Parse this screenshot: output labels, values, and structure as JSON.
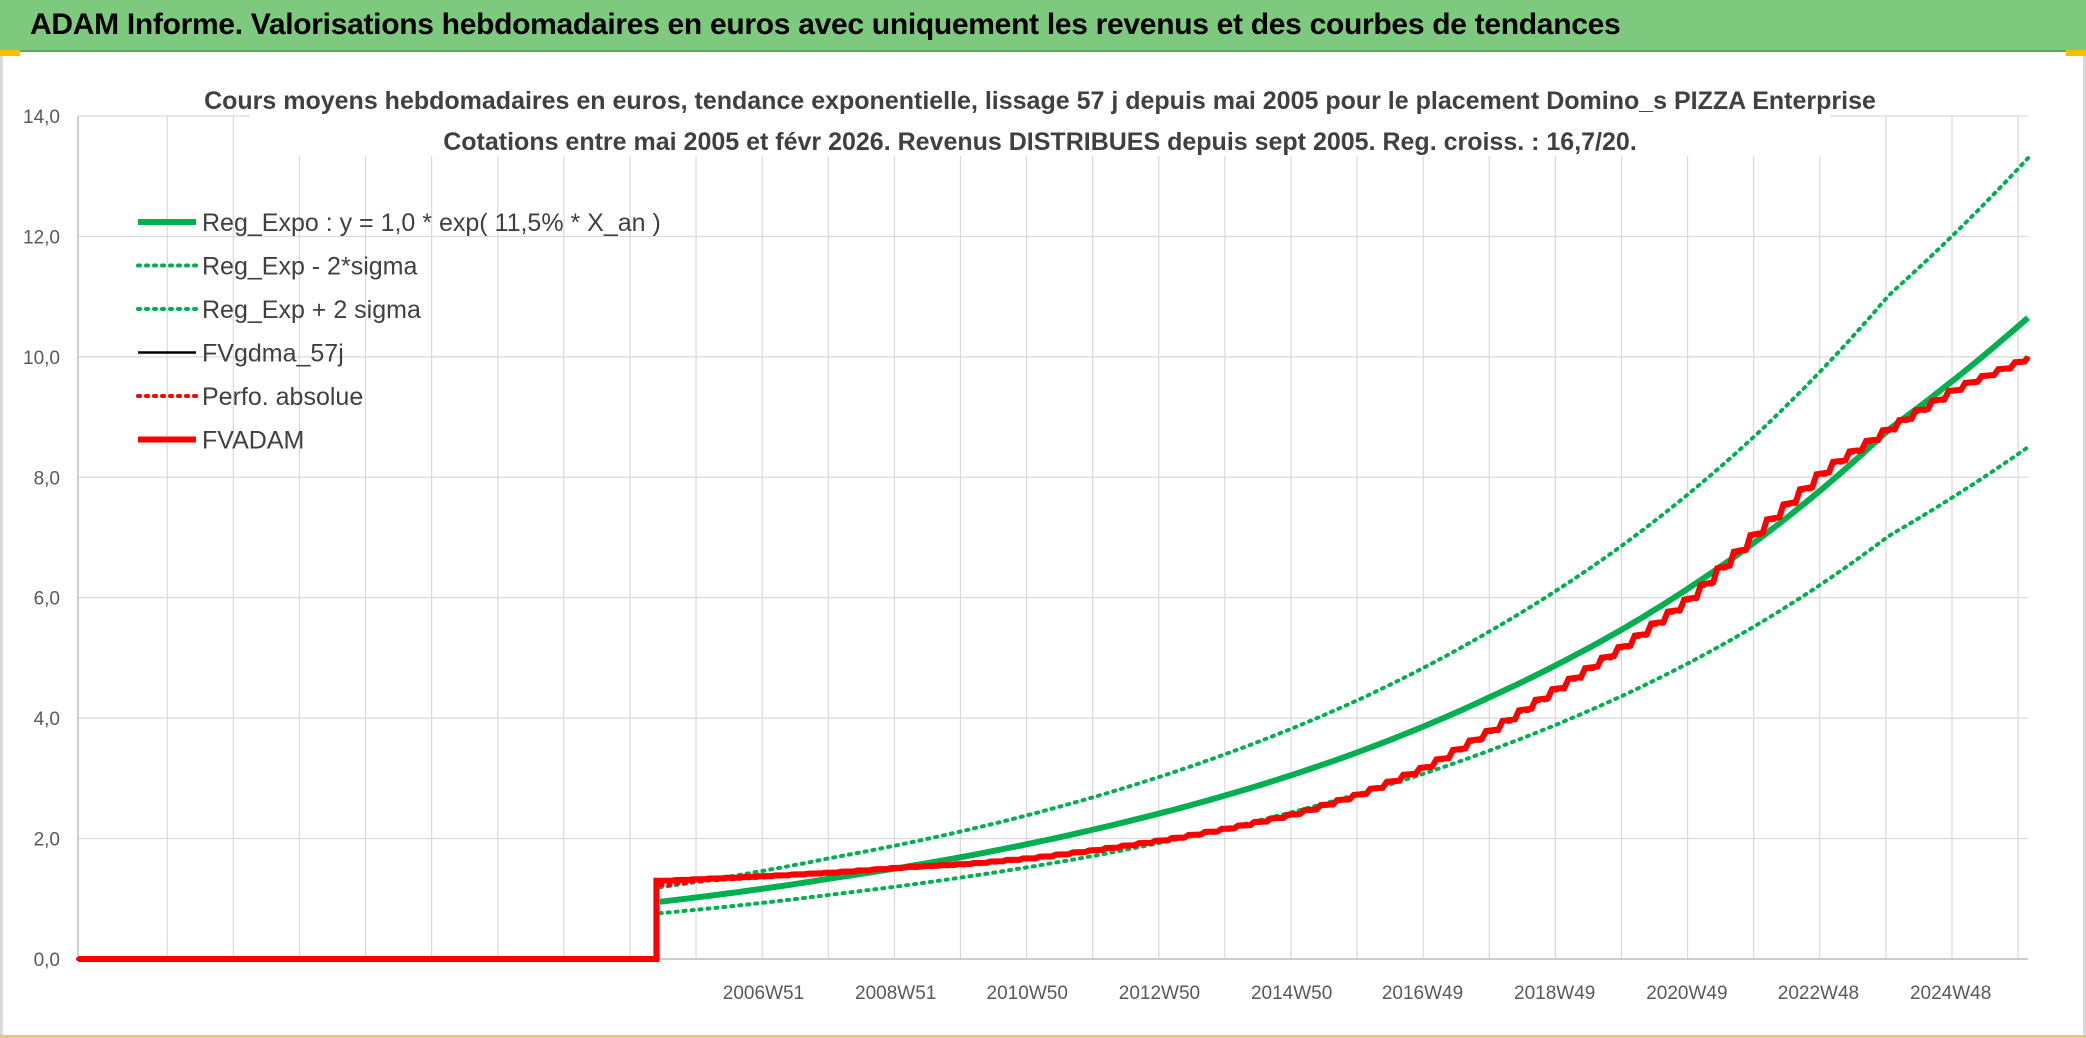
{
  "page": {
    "banner_title": "ADAM Informe. Valorisations hebdomadaires en euros avec uniquement les revenus et des courbes de tendances"
  },
  "colors": {
    "banner_bg": "#7dc97d",
    "green": "#00b050",
    "red": "#ff0000",
    "black": "#000000",
    "grid": "#d9d9d9"
  },
  "chart_data": {
    "type": "line",
    "title_line1": "Cours moyens hebdomadaires en euros, tendance exponentielle, lissage 57 j depuis mai 2005 pour le placement Domino_s PIZZA Enterprise",
    "title_line2": "Cotations entre mai 2005 et févr 2026. Revenus DISTRIBUES depuis sept 2005. Reg. croiss. : 16,7/20.",
    "xlabel": "",
    "ylabel": "",
    "ylim": [
      0,
      14
    ],
    "yticks": [
      "0,0",
      "2,0",
      "4,0",
      "6,0",
      "8,0",
      "10,0",
      "12,0",
      "14,0"
    ],
    "x_range_years": [
      1996.6,
      2026.1
    ],
    "xticks": [
      {
        "label": "2006W51",
        "year": 2006.97
      },
      {
        "label": "2008W51",
        "year": 2008.97
      },
      {
        "label": "2010W50",
        "year": 2010.96
      },
      {
        "label": "2012W50",
        "year": 2012.96
      },
      {
        "label": "2014W50",
        "year": 2014.96
      },
      {
        "label": "2016W49",
        "year": 2016.94
      },
      {
        "label": "2018W49",
        "year": 2018.94
      },
      {
        "label": "2020W49",
        "year": 2020.94
      },
      {
        "label": "2022W48",
        "year": 2022.93
      },
      {
        "label": "2024W48",
        "year": 2024.93
      }
    ],
    "grid": true,
    "legend_position": "top-left",
    "series": [
      {
        "name": "Reg_Expo : y = 1,0 * exp( 11,5% *  X_an )",
        "style": "solid-thick",
        "color": "#00b050",
        "x": [
          2005.4,
          2008,
          2010,
          2012,
          2014,
          2016,
          2018,
          2020,
          2022,
          2024,
          2026.1
        ],
        "values": [
          0.95,
          1.34,
          1.7,
          2.16,
          2.73,
          3.45,
          4.37,
          5.5,
          6.95,
          8.8,
          10.65
        ]
      },
      {
        "name": "Reg_Exp - 2*sigma",
        "style": "dotted",
        "color": "#00b050",
        "x": [
          2005.4,
          2008,
          2010,
          2012,
          2014,
          2016,
          2018,
          2020,
          2022,
          2024,
          2026.1
        ],
        "values": [
          0.76,
          1.07,
          1.36,
          1.72,
          2.18,
          2.75,
          3.48,
          4.39,
          5.55,
          7.03,
          8.5
        ]
      },
      {
        "name": "Reg_Exp + 2 sigma",
        "style": "dotted",
        "color": "#00b050",
        "x": [
          2005.4,
          2008,
          2010,
          2012,
          2014,
          2016,
          2018,
          2020,
          2022,
          2024,
          2026.1
        ],
        "values": [
          1.19,
          1.68,
          2.13,
          2.7,
          3.42,
          4.32,
          5.47,
          6.9,
          8.72,
          11.03,
          13.3
        ]
      },
      {
        "name": "FVgdma_57j",
        "style": "solid-thin",
        "color": "#000000",
        "x": [
          1996.6,
          2005.35,
          2005.4,
          2006,
          2007,
          2008,
          2009,
          2010,
          2011,
          2012,
          2013,
          2014,
          2015,
          2016,
          2017,
          2018,
          2019,
          2020,
          2021,
          2022,
          2023,
          2024,
          2025,
          2026.1
        ],
        "values": [
          0,
          0,
          1.3,
          1.33,
          1.38,
          1.44,
          1.52,
          1.58,
          1.68,
          1.82,
          1.98,
          2.18,
          2.42,
          2.76,
          3.22,
          3.85,
          4.55,
          5.25,
          6.05,
          7.15,
          8.15,
          8.85,
          9.5,
          10.0
        ]
      },
      {
        "name": "Perfo. absolue",
        "style": "dotted",
        "color": "#ff0000",
        "x": [
          1996.6,
          2005.35,
          2005.4,
          2006,
          2007,
          2008,
          2009,
          2010,
          2011,
          2012,
          2013,
          2014,
          2015,
          2016,
          2017,
          2018,
          2019,
          2020,
          2021,
          2022,
          2023,
          2024,
          2025,
          2026.1
        ],
        "values": [
          0,
          0,
          1.22,
          1.3,
          1.36,
          1.42,
          1.5,
          1.56,
          1.66,
          1.8,
          1.96,
          2.16,
          2.4,
          2.74,
          3.2,
          3.82,
          4.52,
          5.22,
          6.02,
          7.12,
          8.12,
          8.82,
          9.48,
          9.98
        ]
      },
      {
        "name": "FVADAM",
        "style": "solid-thick",
        "color": "#ff0000",
        "x": [
          1996.6,
          2005.35,
          2005.4,
          2006,
          2007,
          2008,
          2009,
          2010,
          2011,
          2012,
          2013,
          2014,
          2015,
          2016,
          2017,
          2018,
          2019,
          2020,
          2021,
          2022,
          2023,
          2024,
          2025,
          2026.1
        ],
        "values": [
          0,
          0,
          1.3,
          1.33,
          1.38,
          1.44,
          1.52,
          1.58,
          1.68,
          1.82,
          1.98,
          2.18,
          2.42,
          2.76,
          3.22,
          3.85,
          4.55,
          5.25,
          6.05,
          7.15,
          8.15,
          8.85,
          9.5,
          10.0
        ]
      }
    ]
  }
}
